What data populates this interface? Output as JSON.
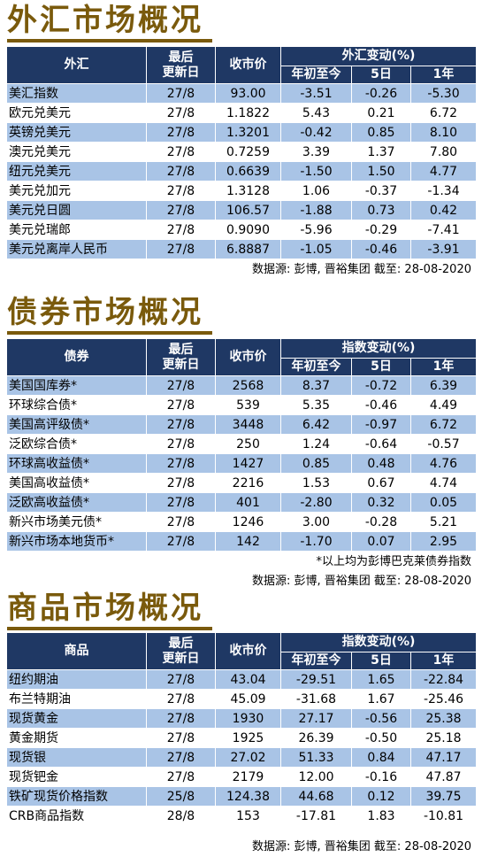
{
  "fx": {
    "title": "外汇市场概况",
    "headers": {
      "name": "外汇",
      "updated": "最后\n更新日",
      "close": "收市价",
      "group": "外汇变动(%)",
      "ytd": "年初至今",
      "d5": "5日",
      "y1": "1年"
    },
    "rows": [
      {
        "name": "美汇指数",
        "date": "27/8",
        "close": "93.00",
        "ytd": "-3.51",
        "d5": "-0.26",
        "y1": "-5.30"
      },
      {
        "name": "欧元兑美元",
        "date": "27/8",
        "close": "1.1822",
        "ytd": "5.43",
        "d5": "0.21",
        "y1": "6.72"
      },
      {
        "name": "英镑兑美元",
        "date": "27/8",
        "close": "1.3201",
        "ytd": "-0.42",
        "d5": "0.85",
        "y1": "8.10"
      },
      {
        "name": "澳元兑美元",
        "date": "27/8",
        "close": "0.7259",
        "ytd": "3.39",
        "d5": "1.37",
        "y1": "7.80"
      },
      {
        "name": "纽元兑美元",
        "date": "27/8",
        "close": "0.6639",
        "ytd": "-1.50",
        "d5": "1.50",
        "y1": "4.77"
      },
      {
        "name": "美元兑加元",
        "date": "27/8",
        "close": "1.3128",
        "ytd": "1.06",
        "d5": "-0.37",
        "y1": "-1.34"
      },
      {
        "name": "美元兑日圆",
        "date": "27/8",
        "close": "106.57",
        "ytd": "-1.88",
        "d5": "0.73",
        "y1": "0.42"
      },
      {
        "name": "美元兑瑞郎",
        "date": "27/8",
        "close": "0.9090",
        "ytd": "-5.96",
        "d5": "-0.29",
        "y1": "-7.41"
      },
      {
        "name": "美元兑离岸人民币",
        "date": "27/8",
        "close": "6.8887",
        "ytd": "-1.05",
        "d5": "-0.46",
        "y1": "-3.91"
      }
    ],
    "source": "数据源: 彭博, 晋裕集团 截至:  28-08-2020"
  },
  "bond": {
    "title": "债券市场概况",
    "headers": {
      "name": "债券",
      "updated": "最后\n更新日",
      "close": "收市价",
      "group": "指数变动(%)",
      "ytd": "年初至今",
      "d5": "5日",
      "y1": "1年"
    },
    "rows": [
      {
        "name": "美国国库券*",
        "date": "27/8",
        "close": "2568",
        "ytd": "8.37",
        "d5": "-0.72",
        "y1": "6.39"
      },
      {
        "name": "环球综合债*",
        "date": "27/8",
        "close": "539",
        "ytd": "5.35",
        "d5": "-0.46",
        "y1": "4.49"
      },
      {
        "name": "美国高评级债*",
        "date": "27/8",
        "close": "3448",
        "ytd": "6.42",
        "d5": "-0.97",
        "y1": "6.72"
      },
      {
        "name": "泛欧综合债*",
        "date": "27/8",
        "close": "250",
        "ytd": "1.24",
        "d5": "-0.64",
        "y1": "-0.57"
      },
      {
        "name": "环球高收益债*",
        "date": "27/8",
        "close": "1427",
        "ytd": "0.85",
        "d5": "0.48",
        "y1": "4.76"
      },
      {
        "name": "美国高收益债*",
        "date": "27/8",
        "close": "2216",
        "ytd": "1.53",
        "d5": "0.67",
        "y1": "4.74"
      },
      {
        "name": "泛欧高收益债*",
        "date": "27/8",
        "close": "401",
        "ytd": "-2.80",
        "d5": "0.32",
        "y1": "0.05"
      },
      {
        "name": "新兴市场美元债*",
        "date": "27/8",
        "close": "1246",
        "ytd": "3.00",
        "d5": "-0.28",
        "y1": "5.21"
      },
      {
        "name": "新兴市场本地货币*",
        "date": "27/8",
        "close": "142",
        "ytd": "-1.70",
        "d5": "0.07",
        "y1": "2.95"
      }
    ],
    "note": "*以上均为彭博巴克莱债券指数",
    "source": "数据源: 彭博, 晋裕集团 截至:  28-08-2020"
  },
  "commodity": {
    "title": "商品市场概况",
    "headers": {
      "name": "商品",
      "updated": "最后\n更新日",
      "close": "收市价",
      "group": "指数变动(%)",
      "ytd": "年初至今",
      "d5": "5日",
      "y1": "1年"
    },
    "rows": [
      {
        "name": "纽约期油",
        "date": "27/8",
        "close": "43.04",
        "ytd": "-29.51",
        "d5": "1.65",
        "y1": "-22.84"
      },
      {
        "name": "布兰特期油",
        "date": "27/8",
        "close": "45.09",
        "ytd": "-31.68",
        "d5": "1.67",
        "y1": "-25.46"
      },
      {
        "name": "现货黄金",
        "date": "27/8",
        "close": "1930",
        "ytd": "27.17",
        "d5": "-0.56",
        "y1": "25.38"
      },
      {
        "name": "黄金期货",
        "date": "27/8",
        "close": "1925",
        "ytd": "26.39",
        "d5": "-0.50",
        "y1": "25.18"
      },
      {
        "name": "现货银",
        "date": "27/8",
        "close": "27.02",
        "ytd": "51.33",
        "d5": "0.84",
        "y1": "47.17"
      },
      {
        "name": "现货钯金",
        "date": "27/8",
        "close": "2179",
        "ytd": "12.00",
        "d5": "-0.16",
        "y1": "47.87"
      },
      {
        "name": "铁矿现货价格指数",
        "date": "25/8",
        "close": "124.38",
        "ytd": "44.68",
        "d5": "0.12",
        "y1": "39.75"
      },
      {
        "name": "CRB商品指数",
        "date": "28/8",
        "close": "153",
        "ytd": "-17.81",
        "d5": "1.83",
        "y1": "-10.81"
      }
    ],
    "source": "数据源: 彭博, 晋裕集团 截至:  28-08-2020"
  },
  "colors": {
    "title": "#7a5a0c",
    "header_bg": "#1f3864",
    "row_alt": "#a9c4e6"
  }
}
